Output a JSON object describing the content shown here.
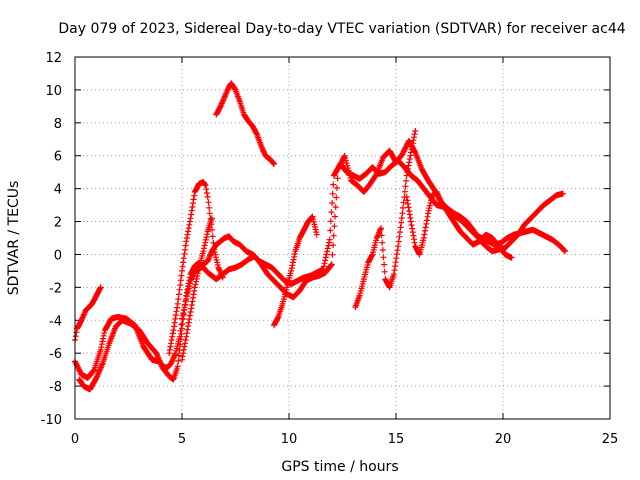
{
  "chart_data": {
    "type": "scatter",
    "title": "Day 079 of 2023, Sidereal Day-to-day VTEC variation (SDTVAR) for receiver ac44",
    "xlabel": "GPS time / hours",
    "ylabel": "SDTVAR / TECUs",
    "xlim": [
      0,
      25
    ],
    "ylim": [
      -10,
      12
    ],
    "xticks": [
      0,
      5,
      10,
      15,
      20,
      25
    ],
    "yticks": [
      -10,
      -8,
      -6,
      -4,
      -2,
      0,
      2,
      4,
      6,
      8,
      10,
      12
    ],
    "grid": true,
    "marker": "+",
    "color": "#ff0000",
    "series": [
      {
        "name": "s1",
        "x": [
          0.0,
          0.3,
          0.6,
          0.9,
          1.2,
          1.4,
          1.7,
          2.0,
          2.4,
          2.8,
          3.2,
          3.6,
          3.9,
          4.1,
          4.3,
          4.5,
          4.7,
          4.9,
          5.0,
          5.2,
          5.4,
          5.6,
          5.8,
          6.0,
          6.2,
          6.4,
          6.6,
          6.8,
          7.0,
          7.2,
          7.4,
          7.7,
          8.0,
          8.3,
          8.6,
          8.9,
          9.2,
          9.5,
          9.8,
          10.1,
          10.4,
          10.7,
          11.0,
          11.3,
          11.6,
          11.9,
          12.1,
          12.4,
          12.7,
          13.0,
          13.3,
          13.6,
          13.9,
          14.2,
          14.5,
          14.8,
          15.1,
          15.4,
          15.7,
          16.0,
          16.3,
          16.6,
          16.9,
          17.2,
          17.5,
          17.8,
          18.1,
          18.4,
          18.7,
          19.0,
          19.3,
          19.6,
          19.9,
          20.2,
          20.5,
          20.8,
          21.1,
          21.4,
          21.7,
          22.0,
          22.3,
          22.6,
          22.9
        ],
        "y": [
          -6.5,
          -7.3,
          -7.5,
          -7.0,
          -5.8,
          -4.6,
          -3.9,
          -3.8,
          -3.9,
          -4.3,
          -5.6,
          -6.4,
          -6.5,
          -6.8,
          -6.9,
          -6.6,
          -6.0,
          -5.0,
          -3.9,
          -2.7,
          -1.6,
          -1.0,
          -0.9,
          -0.6,
          -0.4,
          0.2,
          0.6,
          0.8,
          1.0,
          1.1,
          0.8,
          0.6,
          0.2,
          0.0,
          -0.4,
          -0.6,
          -0.8,
          -1.2,
          -1.6,
          -1.8,
          -1.6,
          -1.4,
          -1.3,
          -1.1,
          -0.9,
          0.9,
          4.8,
          5.5,
          5.0,
          4.8,
          4.6,
          4.9,
          5.3,
          4.9,
          5.0,
          5.4,
          5.7,
          5.3,
          4.8,
          4.5,
          4.0,
          3.5,
          3.0,
          2.9,
          2.6,
          2.3,
          2.0,
          1.6,
          1.2,
          1.0,
          0.8,
          0.6,
          0.7,
          1.0,
          1.2,
          1.3,
          1.4,
          1.5,
          1.3,
          1.1,
          0.9,
          0.6,
          0.2
        ]
      },
      {
        "name": "s2",
        "x": [
          0.2,
          0.4,
          0.7,
          1.0,
          1.3,
          1.6,
          1.9,
          2.2,
          2.6,
          3.0,
          3.4,
          3.8,
          4.1,
          4.4,
          4.6,
          4.8,
          5.0,
          5.2,
          5.4,
          5.6,
          5.8,
          6.0,
          6.2,
          6.4,
          6.6,
          6.9,
          7.2,
          7.5,
          7.8,
          8.1,
          8.4,
          8.7,
          9.0,
          9.3,
          9.6,
          9.9,
          10.2,
          10.5,
          10.8,
          11.1,
          11.4,
          11.7,
          12.0,
          12.3,
          12.6,
          12.9,
          13.2,
          13.5,
          13.8,
          14.1,
          14.4,
          14.7,
          15.0,
          15.3,
          15.6,
          15.9,
          16.2,
          16.5,
          16.8,
          17.1,
          17.4,
          17.7,
          18.0,
          18.3,
          18.6,
          18.9,
          19.2,
          19.5,
          19.8,
          20.1,
          20.4,
          20.7,
          21.0,
          21.3,
          21.6,
          21.9,
          22.2,
          22.5,
          22.8
        ],
        "y": [
          -7.6,
          -8.0,
          -8.2,
          -7.5,
          -6.6,
          -5.4,
          -4.4,
          -4.0,
          -4.2,
          -4.6,
          -5.4,
          -6.0,
          -6.9,
          -7.4,
          -7.6,
          -6.8,
          -4.5,
          -2.5,
          -1.2,
          -0.7,
          -0.5,
          -0.8,
          -1.1,
          -1.3,
          -1.5,
          -1.2,
          -0.9,
          -0.8,
          -0.6,
          -0.3,
          -0.1,
          -0.6,
          -1.2,
          -1.6,
          -2.0,
          -2.4,
          -2.6,
          -2.2,
          -1.6,
          -1.4,
          -1.3,
          -1.1,
          -0.6,
          5.2,
          6.0,
          4.5,
          4.2,
          3.8,
          4.3,
          4.9,
          5.9,
          6.3,
          5.6,
          6.1,
          6.9,
          6.2,
          5.2,
          4.5,
          3.9,
          3.2,
          2.8,
          2.5,
          2.3,
          2.0,
          1.5,
          0.9,
          0.5,
          0.2,
          0.3,
          0.4,
          0.8,
          1.2,
          1.8,
          2.2,
          2.6,
          3.0,
          3.3,
          3.6,
          3.7
        ]
      },
      {
        "name": "s3",
        "x": [
          0.0,
          0.1,
          0.3,
          0.5,
          0.8,
          1.0,
          1.2
        ],
        "y": [
          -5.2,
          -4.5,
          -4.0,
          -3.4,
          -3.0,
          -2.5,
          -2.0
        ]
      },
      {
        "name": "s4",
        "x": [
          4.4,
          4.6,
          4.8,
          5.0,
          5.2,
          5.4,
          5.6,
          5.8,
          6.0,
          6.1,
          6.2,
          6.3,
          6.4,
          6.5,
          6.7,
          6.9
        ],
        "y": [
          -6.0,
          -4.6,
          -3.0,
          -1.0,
          0.8,
          2.2,
          3.8,
          4.3,
          4.4,
          4.2,
          3.5,
          2.5,
          1.5,
          0.3,
          -0.8,
          -1.4
        ]
      },
      {
        "name": "s5",
        "x": [
          5.0,
          5.2,
          5.4,
          5.6,
          5.8,
          6.0,
          6.2,
          6.4
        ],
        "y": [
          -6.4,
          -5.0,
          -3.5,
          -2.0,
          -0.8,
          0.2,
          1.4,
          2.2
        ]
      },
      {
        "name": "s6",
        "x": [
          6.6,
          6.8,
          7.0,
          7.2,
          7.3,
          7.5,
          7.7,
          7.9,
          8.1,
          8.3,
          8.5,
          8.7,
          8.9,
          9.1,
          9.3
        ],
        "y": [
          8.5,
          9.0,
          9.6,
          10.2,
          10.4,
          10.0,
          9.3,
          8.5,
          8.1,
          7.8,
          7.3,
          6.6,
          6.0,
          5.8,
          5.5
        ]
      },
      {
        "name": "s7",
        "x": [
          9.3,
          9.5,
          9.7,
          9.9,
          10.1,
          10.3,
          10.5,
          10.7,
          10.9,
          11.1,
          11.3
        ],
        "y": [
          -4.3,
          -3.8,
          -3.0,
          -2.0,
          -1.0,
          0.2,
          1.0,
          1.5,
          2.0,
          2.3,
          1.2
        ]
      },
      {
        "name": "s8",
        "x": [
          13.1,
          13.3,
          13.5,
          13.7,
          13.9,
          14.1,
          14.3,
          14.5,
          14.7,
          14.9,
          15.1,
          15.3,
          15.5,
          15.7,
          15.9
        ],
        "y": [
          -3.2,
          -2.5,
          -1.5,
          -0.5,
          0.0,
          1.0,
          1.6,
          -1.5,
          -2.0,
          -1.2,
          0.5,
          2.5,
          4.8,
          6.2,
          7.5
        ]
      },
      {
        "name": "s9",
        "x": [
          15.5,
          15.7,
          15.9,
          16.1,
          16.3,
          16.5,
          16.7,
          16.9,
          17.1,
          17.4,
          17.7,
          18.0,
          18.3,
          18.6,
          18.9,
          19.2,
          19.5,
          19.8,
          20.1,
          20.4
        ],
        "y": [
          3.5,
          2.0,
          0.5,
          0.0,
          1.0,
          2.5,
          3.6,
          3.8,
          3.2,
          2.6,
          2.0,
          1.4,
          1.0,
          0.6,
          0.8,
          1.2,
          1.0,
          0.5,
          0.0,
          -0.2
        ]
      }
    ]
  }
}
